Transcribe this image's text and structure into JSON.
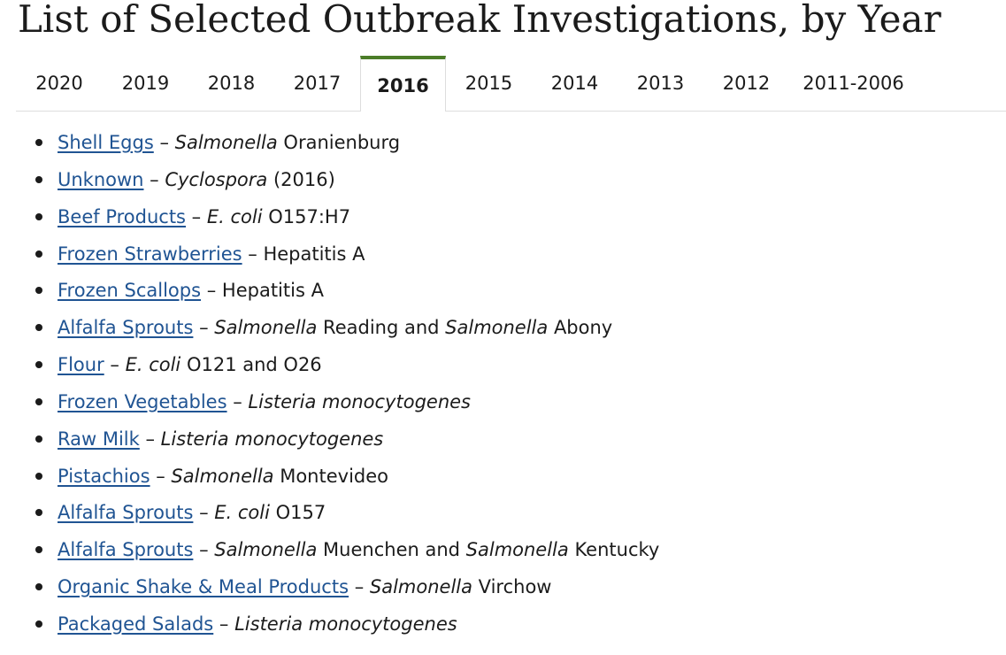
{
  "page": {
    "title": "List of Selected Outbreak Investigations, by Year"
  },
  "tabs": [
    {
      "label": "2020",
      "active": false
    },
    {
      "label": "2019",
      "active": false
    },
    {
      "label": "2018",
      "active": false
    },
    {
      "label": "2017",
      "active": false
    },
    {
      "label": "2016",
      "active": true
    },
    {
      "label": "2015",
      "active": false
    },
    {
      "label": "2014",
      "active": false
    },
    {
      "label": "2013",
      "active": false
    },
    {
      "label": "2012",
      "active": false
    },
    {
      "label": "2011-2006",
      "active": false
    }
  ],
  "separator": " – ",
  "outbreaks": [
    {
      "link": "Shell Eggs",
      "pathogen": [
        {
          "text": "Salmonella",
          "italic": true
        },
        {
          "text": " Oranienburg",
          "italic": false
        }
      ]
    },
    {
      "link": "Unknown",
      "pathogen": [
        {
          "text": "Cyclospora",
          "italic": true
        },
        {
          "text": " (2016)",
          "italic": false
        }
      ]
    },
    {
      "link": "Beef Products",
      "pathogen": [
        {
          "text": "E. coli",
          "italic": true
        },
        {
          "text": " O157:H7",
          "italic": false
        }
      ]
    },
    {
      "link": "Frozen Strawberries",
      "pathogen": [
        {
          "text": "Hepatitis A",
          "italic": false
        }
      ]
    },
    {
      "link": "Frozen Scallops",
      "pathogen": [
        {
          "text": "Hepatitis A",
          "italic": false
        }
      ]
    },
    {
      "link": "Alfalfa Sprouts",
      "pathogen": [
        {
          "text": "Salmonella",
          "italic": true
        },
        {
          "text": " Reading and ",
          "italic": false
        },
        {
          "text": "Salmonella",
          "italic": true
        },
        {
          "text": " Abony",
          "italic": false
        }
      ]
    },
    {
      "link": "Flour",
      "pathogen": [
        {
          "text": "E. coli",
          "italic": true
        },
        {
          "text": " O121 and O26",
          "italic": false
        }
      ]
    },
    {
      "link": "Frozen Vegetables",
      "pathogen": [
        {
          "text": "Listeria monocytogenes",
          "italic": true
        }
      ]
    },
    {
      "link": "Raw Milk",
      "pathogen": [
        {
          "text": "Listeria monocytogenes",
          "italic": true
        }
      ]
    },
    {
      "link": "Pistachios",
      "pathogen": [
        {
          "text": "Salmonella",
          "italic": true
        },
        {
          "text": " Montevideo",
          "italic": false
        }
      ]
    },
    {
      "link": "Alfalfa Sprouts",
      "pathogen": [
        {
          "text": "E. coli",
          "italic": true
        },
        {
          "text": " O157",
          "italic": false
        }
      ]
    },
    {
      "link": "Alfalfa Sprouts",
      "pathogen": [
        {
          "text": "Salmonella",
          "italic": true
        },
        {
          "text": " Muenchen and ",
          "italic": false
        },
        {
          "text": "Salmonella",
          "italic": true
        },
        {
          "text": " Kentucky",
          "italic": false
        }
      ]
    },
    {
      "link": "Organic Shake & Meal Products",
      "pathogen": [
        {
          "text": "Salmonella",
          "italic": true
        },
        {
          "text": " Virchow",
          "italic": false
        }
      ]
    },
    {
      "link": "Packaged Salads",
      "pathogen": [
        {
          "text": "Listeria monocytogenes",
          "italic": true
        }
      ]
    }
  ]
}
